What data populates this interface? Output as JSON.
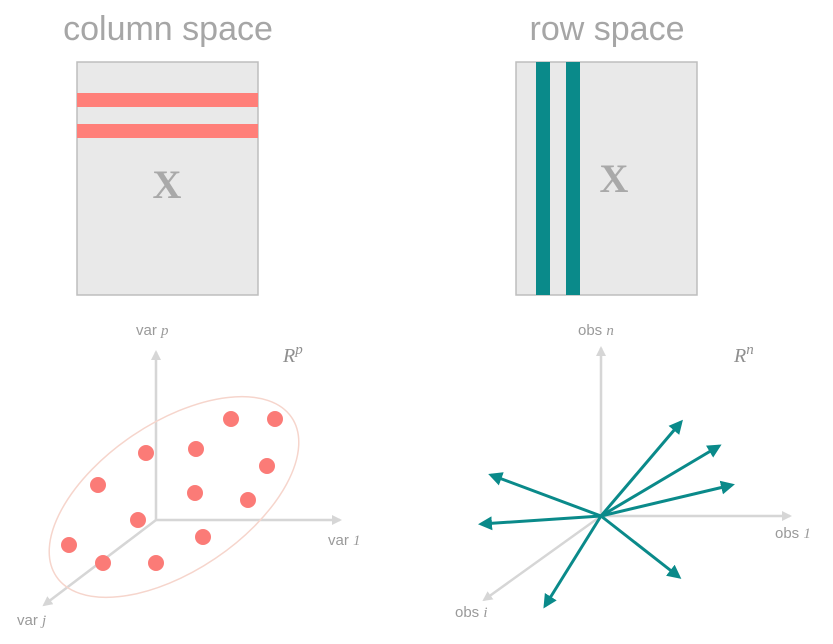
{
  "colors": {
    "title": "#a6a6a6",
    "matrix_fill": "#e9e9e9",
    "matrix_border": "#bdbdbd",
    "row_highlight": "#ff7f79",
    "column_highlight": "#0a8a8a",
    "axis": "#d6d6d6",
    "point": "#fb7b77",
    "ellipse": "#f6d5cc",
    "vector": "#0a8a8a"
  },
  "left_panel": {
    "title": "column space",
    "matrix_label": "X",
    "space_label": {
      "base": "R",
      "exp": "p"
    },
    "axes": {
      "vertical": {
        "prefix": "var",
        "var": "p"
      },
      "horizontal": {
        "prefix": "var",
        "var": "1"
      },
      "depth": {
        "prefix": "var",
        "var": "j"
      }
    }
  },
  "right_panel": {
    "title": "row space",
    "matrix_label": "X",
    "space_label": {
      "base": "R",
      "exp": "n"
    },
    "axes": {
      "vertical": {
        "prefix": "obs",
        "var": "n"
      },
      "horizontal": {
        "prefix": "obs",
        "var": "1"
      },
      "depth": {
        "prefix": "obs",
        "var": "i"
      }
    }
  }
}
